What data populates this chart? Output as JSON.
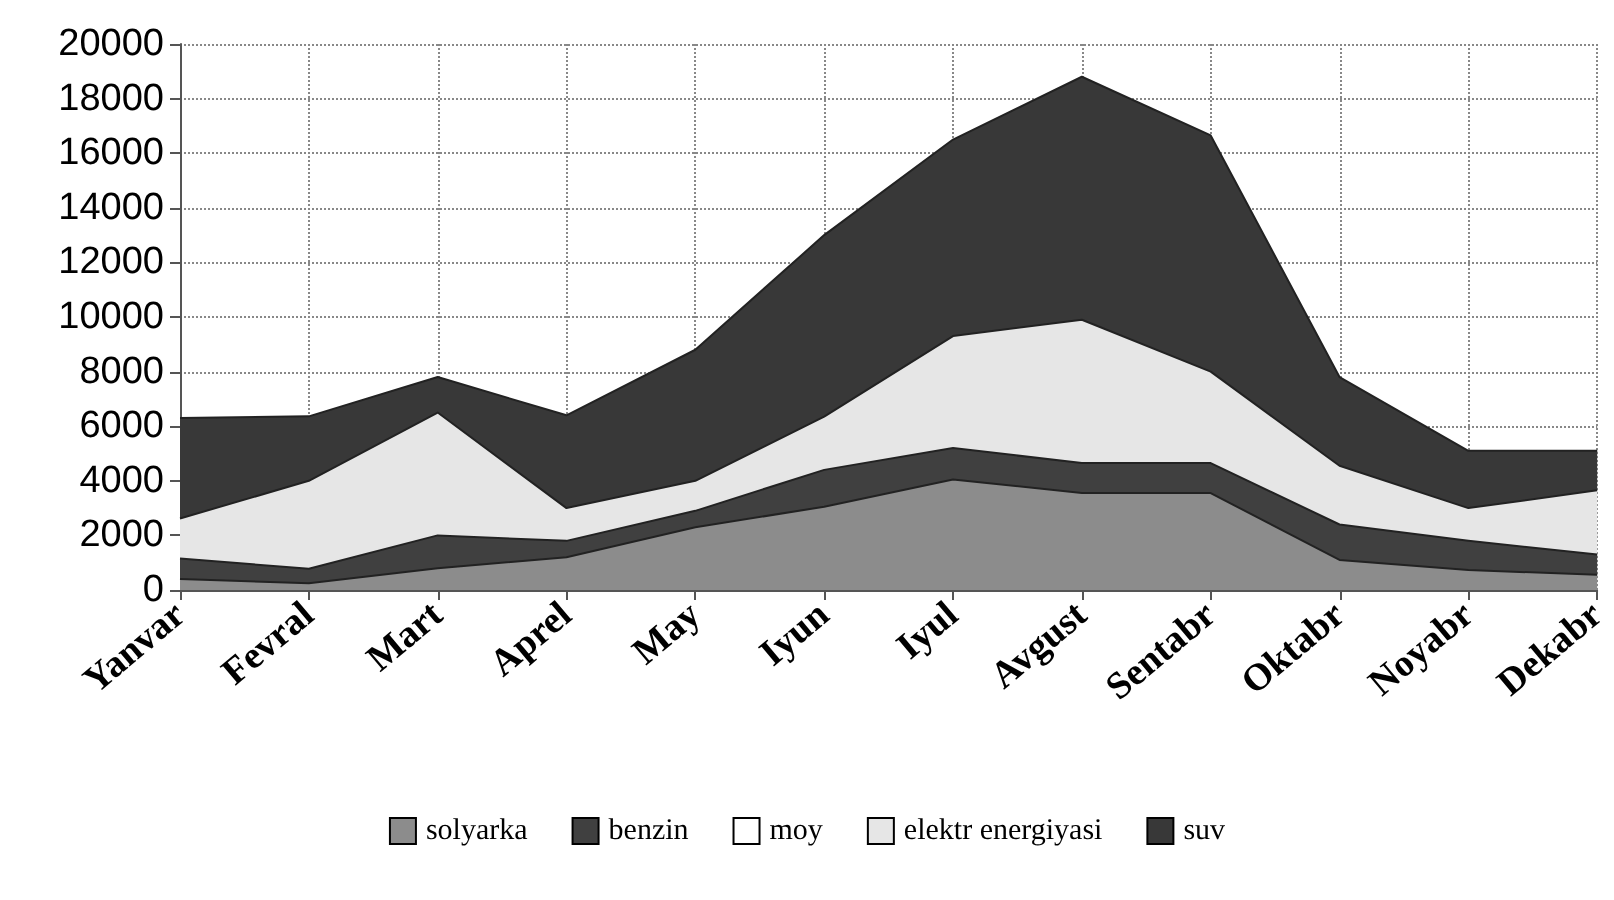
{
  "chart_data": {
    "type": "area",
    "stacked": true,
    "categories": [
      "Yanvar",
      "Fevral",
      "Mart",
      "Aprel",
      "May",
      "Iyun",
      "Iyul",
      "Avgust",
      "Sentabr",
      "Oktabr",
      "Noyabr",
      "Dekabr"
    ],
    "series": [
      {
        "name": "solyarka",
        "color": "#8c8c8c",
        "values": [
          400,
          250,
          800,
          1200,
          2300,
          3050,
          4050,
          3550,
          3550,
          1100,
          730,
          560
        ]
      },
      {
        "name": "benzin",
        "color": "#404040",
        "values": [
          750,
          530,
          1200,
          600,
          600,
          1350,
          1150,
          1100,
          1100,
          1300,
          1070,
          740
        ]
      },
      {
        "name": "moy",
        "color": "#ffffff",
        "values": [
          null,
          null,
          null,
          null,
          null,
          null,
          null,
          null,
          null,
          null,
          null,
          null
        ]
      },
      {
        "name": "elektr energiyasi",
        "color": "#e6e6e6",
        "values": [
          1470,
          3220,
          4500,
          1200,
          1100,
          1950,
          4100,
          5250,
          3350,
          2150,
          1200,
          2350
        ]
      },
      {
        "name": "suv",
        "color": "#383838",
        "values": [
          3680,
          2360,
          1300,
          3400,
          4800,
          6650,
          7200,
          8900,
          8650,
          3250,
          2100,
          1450
        ]
      }
    ],
    "ylim": [
      0,
      20000
    ],
    "yticks": [
      0,
      2000,
      4000,
      6000,
      8000,
      10000,
      12000,
      14000,
      16000,
      18000,
      20000
    ],
    "grid": true,
    "legend": "bottom"
  }
}
